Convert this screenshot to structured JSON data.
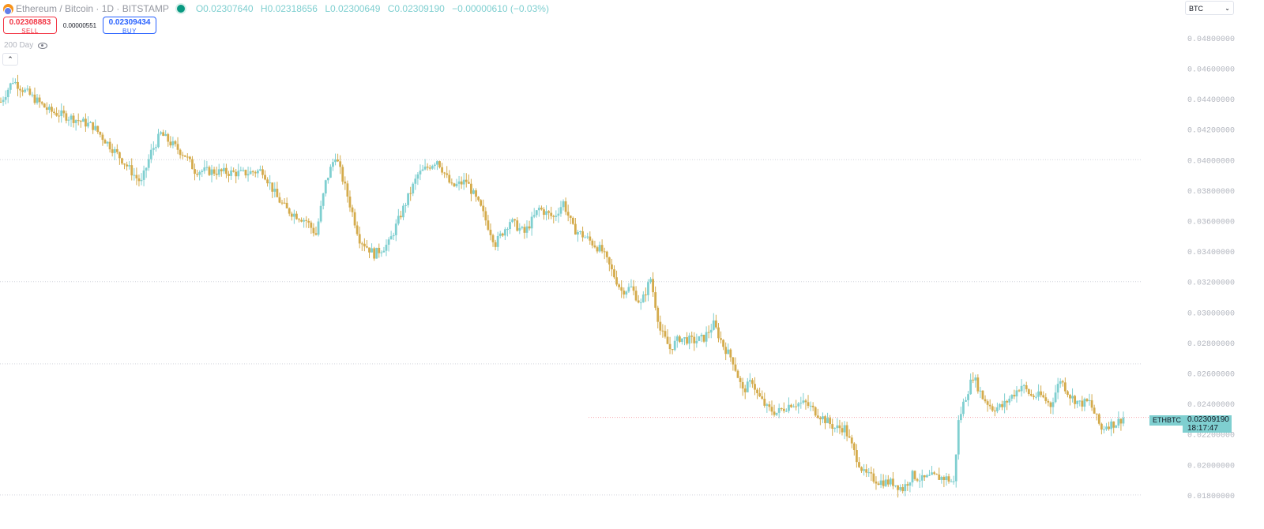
{
  "header": {
    "symbol": "Ethereum / Bitcoin · 1D · BITSTAMP",
    "open": "O0.02307640",
    "high": "H0.02318656",
    "low": "L0.02300649",
    "close": "C0.02309190",
    "change": "−0.00000610 (−0.03%)"
  },
  "trade": {
    "sell_price": "0.02308883",
    "sell_label": "SELL",
    "spread": "0.00000551",
    "buy_price": "0.02309434",
    "buy_label": "BUY"
  },
  "indicator": {
    "label": "200 Day"
  },
  "currency": {
    "label": "BTC"
  },
  "price_label": {
    "symbol": "ETHBTC",
    "price": "0.02309190",
    "countdown": "18:17:47"
  },
  "colors": {
    "up": "#7fcfd0",
    "down": "#d4ab4c",
    "grid": "#d1d4dc",
    "current": "#f4a3ab"
  },
  "chart_data": {
    "type": "candlestick",
    "y_ticks": [
      "0.04800000",
      "0.04600000",
      "0.04400000",
      "0.04200000",
      "0.04000000",
      "0.03800000",
      "0.03600000",
      "0.03400000",
      "0.03200000",
      "0.03000000",
      "0.02800000",
      "0.02600000",
      "0.02400000",
      "0.02200000",
      "0.02000000",
      "0.01800000"
    ],
    "ylim": [
      0.0176,
      0.049
    ],
    "levels": [
      0.04,
      0.032,
      0.0266,
      0.02309,
      0.018
    ],
    "current_price": 0.02309,
    "anchors": [
      [
        0,
        0.0438
      ],
      [
        5,
        0.0452
      ],
      [
        10,
        0.0445
      ],
      [
        20,
        0.0432
      ],
      [
        30,
        0.0427
      ],
      [
        38,
        0.0422
      ],
      [
        44,
        0.0411
      ],
      [
        50,
        0.04
      ],
      [
        56,
        0.0388
      ],
      [
        58,
        0.0385
      ],
      [
        62,
        0.0405
      ],
      [
        66,
        0.0417
      ],
      [
        70,
        0.0411
      ],
      [
        76,
        0.0403
      ],
      [
        80,
        0.0393
      ],
      [
        90,
        0.0392
      ],
      [
        100,
        0.0391
      ],
      [
        108,
        0.0393
      ],
      [
        114,
        0.0375
      ],
      [
        118,
        0.0367
      ],
      [
        126,
        0.036
      ],
      [
        130,
        0.0351
      ],
      [
        134,
        0.0385
      ],
      [
        138,
        0.0403
      ],
      [
        142,
        0.0382
      ],
      [
        148,
        0.0348
      ],
      [
        154,
        0.0338
      ],
      [
        160,
        0.0345
      ],
      [
        166,
        0.0368
      ],
      [
        172,
        0.039
      ],
      [
        176,
        0.0395
      ],
      [
        180,
        0.04
      ],
      [
        186,
        0.0382
      ],
      [
        192,
        0.0386
      ],
      [
        198,
        0.0368
      ],
      [
        204,
        0.0345
      ],
      [
        210,
        0.036
      ],
      [
        216,
        0.0352
      ],
      [
        222,
        0.0368
      ],
      [
        228,
        0.0362
      ],
      [
        232,
        0.0372
      ],
      [
        236,
        0.0355
      ],
      [
        242,
        0.0348
      ],
      [
        248,
        0.034
      ],
      [
        252,
        0.0327
      ],
      [
        256,
        0.0314
      ],
      [
        260,
        0.0316
      ],
      [
        264,
        0.0305
      ],
      [
        268,
        0.0322
      ],
      [
        272,
        0.0288
      ],
      [
        276,
        0.0276
      ],
      [
        280,
        0.0283
      ],
      [
        286,
        0.0281
      ],
      [
        290,
        0.0283
      ],
      [
        294,
        0.0292
      ],
      [
        298,
        0.0278
      ],
      [
        302,
        0.0268
      ],
      [
        306,
        0.0248
      ],
      [
        310,
        0.0255
      ],
      [
        312,
        0.0246
      ],
      [
        316,
        0.0237
      ],
      [
        320,
        0.0234
      ],
      [
        326,
        0.024
      ],
      [
        332,
        0.024
      ],
      [
        338,
        0.0232
      ],
      [
        344,
        0.0224
      ],
      [
        348,
        0.0224
      ],
      [
        352,
        0.0208
      ],
      [
        356,
        0.0194
      ],
      [
        362,
        0.0189
      ],
      [
        368,
        0.0188
      ],
      [
        372,
        0.0184
      ],
      [
        376,
        0.0193
      ],
      [
        380,
        0.019
      ],
      [
        384,
        0.0192
      ],
      [
        390,
        0.0191
      ],
      [
        393,
        0.0188
      ],
      [
        395,
        0.0228
      ],
      [
        397,
        0.024
      ],
      [
        401,
        0.0258
      ],
      [
        405,
        0.0244
      ],
      [
        409,
        0.0237
      ],
      [
        413,
        0.0238
      ],
      [
        417,
        0.0245
      ],
      [
        421,
        0.0252
      ],
      [
        425,
        0.0245
      ],
      [
        429,
        0.0245
      ],
      [
        433,
        0.0239
      ],
      [
        437,
        0.0256
      ],
      [
        441,
        0.0245
      ],
      [
        445,
        0.024
      ],
      [
        449,
        0.0241
      ],
      [
        452,
        0.023
      ],
      [
        454,
        0.0223
      ],
      [
        456,
        0.0226
      ],
      [
        460,
        0.0227
      ],
      [
        463,
        0.02309
      ]
    ]
  }
}
